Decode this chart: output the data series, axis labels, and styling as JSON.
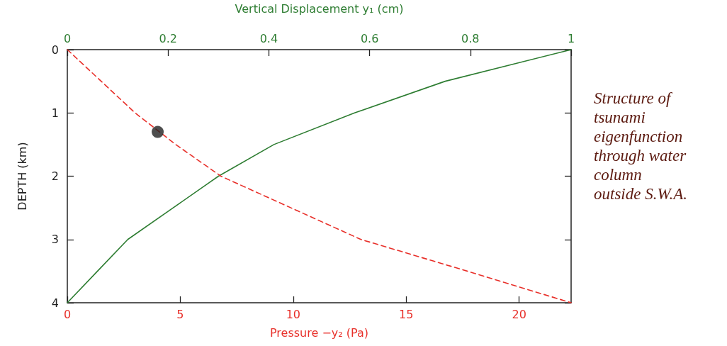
{
  "chart_data": {
    "type": "line",
    "xlabel": "Pressure −y₂ (Pa)",
    "x2label": "Vertical Displacement y₁ (cm)",
    "ylabel": "DEPTH (km)",
    "xlim": [
      0,
      22.3
    ],
    "xticks": [
      0,
      5,
      10,
      15,
      20
    ],
    "x2lim": [
      0,
      1
    ],
    "x2ticks": [
      0,
      0.2,
      0.4,
      0.6,
      0.8,
      1
    ],
    "ylim": [
      4,
      0
    ],
    "yticks": [
      0,
      1,
      2,
      3,
      4
    ],
    "marker": "none",
    "annotations": [
      "Structure of\ntsunami\neigenfunction\nthrough water\ncolumn\noutside S.W.A."
    ],
    "series": [
      {
        "axis": "x2",
        "color": "#2e7d32",
        "line_style": "solid",
        "x": [
          1,
          0.75,
          0.57,
          0.41,
          0.3,
          0.21,
          0.12,
          0.06,
          0
        ],
        "values": [
          0,
          0.5,
          1,
          1.5,
          2,
          2.5,
          3,
          3.5,
          4
        ]
      },
      {
        "color": "#e8302a",
        "line_style": "dashed",
        "x": [
          0,
          1.5,
          3.0,
          4.8,
          6.8,
          9.9,
          13.0,
          17.7,
          22.3
        ],
        "values": [
          0,
          0.5,
          1,
          1.5,
          2,
          2.5,
          3,
          3.5,
          4
        ]
      },
      {
        "type": "scatter",
        "marker": "circle",
        "color": "#222222",
        "x": [
          4.0
        ],
        "values": [
          1.3
        ]
      }
    ]
  }
}
